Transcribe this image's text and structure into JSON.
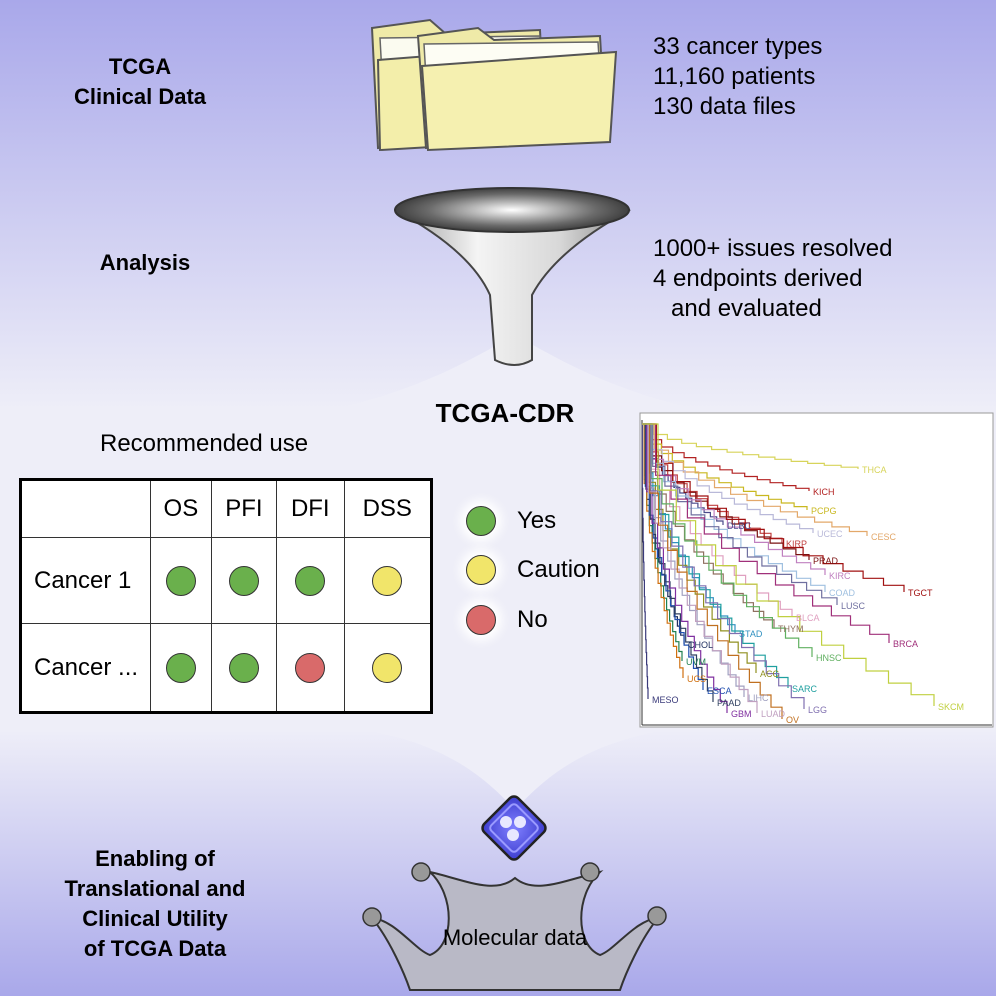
{
  "left_labels": {
    "tcga": [
      "TCGA",
      "Clinical Data"
    ],
    "analysis": "Analysis",
    "enabling": [
      "Enabling of",
      "Translational and",
      "Clinical Utility",
      "of TCGA Data"
    ]
  },
  "stats_top": [
    "33 cancer types",
    "11,160 patients",
    "130 data files"
  ],
  "stats_analysis": [
    "1000+ issues resolved",
    "4 endpoints derived",
    "and evaluated"
  ],
  "cdr_title": "TCGA-CDR",
  "recommended_use": {
    "title": "Recommended use",
    "columns": [
      "OS",
      "PFI",
      "DFI",
      "DSS"
    ],
    "rows": [
      {
        "label": "Cancer 1",
        "values": [
          "yes",
          "yes",
          "yes",
          "caution"
        ]
      },
      {
        "label": "Cancer ...",
        "values": [
          "yes",
          "yes",
          "no",
          "caution"
        ]
      }
    ],
    "legend": [
      {
        "key": "yes",
        "label": "Yes",
        "color": "#6ab04c"
      },
      {
        "key": "caution",
        "label": "Caution",
        "color": "#f1e56a"
      },
      {
        "key": "no",
        "label": "No",
        "color": "#d96a6a"
      }
    ]
  },
  "km_plot": {
    "curves": [
      {
        "label": "THCA",
        "color": "#d7d45a"
      },
      {
        "label": "KICH",
        "color": "#b22222"
      },
      {
        "label": "PCPG",
        "color": "#c9b820"
      },
      {
        "label": "CESC",
        "color": "#e3a86a"
      },
      {
        "label": "DLBC",
        "color": "#4a4a8a"
      },
      {
        "label": "UCEC",
        "color": "#b9b9d9"
      },
      {
        "label": "KIRP",
        "color": "#c04040"
      },
      {
        "label": "PRAD",
        "color": "#7a1010"
      },
      {
        "label": "KIRC",
        "color": "#c080c0"
      },
      {
        "label": "TGCT",
        "color": "#a01010"
      },
      {
        "label": "COAD",
        "color": "#a0c0e0"
      },
      {
        "label": "LUSC",
        "color": "#7070a0"
      },
      {
        "label": "BLCA",
        "color": "#e0a0c0"
      },
      {
        "label": "THYM",
        "color": "#907060"
      },
      {
        "label": "STAD",
        "color": "#3090c0"
      },
      {
        "label": "BRCA",
        "color": "#a0307a"
      },
      {
        "label": "CHOL",
        "color": "#203060"
      },
      {
        "label": "UVM",
        "color": "#208050"
      },
      {
        "label": "ACC",
        "color": "#909020"
      },
      {
        "label": "HNSC",
        "color": "#60b060"
      },
      {
        "label": "UCS",
        "color": "#d07010"
      },
      {
        "label": "ESCA",
        "color": "#2050b0"
      },
      {
        "label": "SARC",
        "color": "#20a0a0"
      },
      {
        "label": "LIHC",
        "color": "#a0a0c0"
      },
      {
        "label": "MESO",
        "color": "#3a3a7a"
      },
      {
        "label": "PAAD",
        "color": "#304060"
      },
      {
        "label": "GBM",
        "color": "#8030a0"
      },
      {
        "label": "LUAD",
        "color": "#c0a0c0"
      },
      {
        "label": "OV",
        "color": "#c07020"
      },
      {
        "label": "LGG",
        "color": "#8070b0"
      },
      {
        "label": "SKCM",
        "color": "#c0d040"
      }
    ]
  },
  "molecular_data": "Molecular data",
  "colors": {
    "background_top": "#a9a8ea",
    "background_light": "#eeeef8"
  }
}
